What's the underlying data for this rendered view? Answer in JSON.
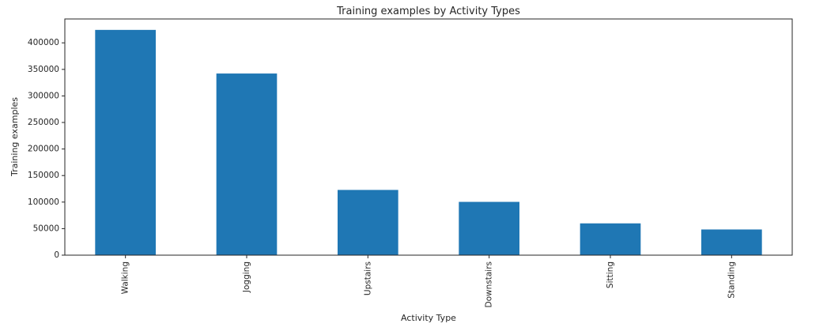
{
  "chart_data": {
    "type": "bar",
    "title": "Training examples by Activity Types",
    "xlabel": "Activity Type",
    "ylabel": "Training examples",
    "categories": [
      "Walking",
      "Jogging",
      "Upstairs",
      "Downstairs",
      "Sitting",
      "Standing"
    ],
    "values": [
      424400,
      342200,
      122900,
      100400,
      59900,
      48400
    ],
    "ylim": [
      0,
      445000
    ],
    "yticks": [
      0,
      50000,
      100000,
      150000,
      200000,
      250000,
      300000,
      350000,
      400000
    ],
    "ytick_labels": [
      "0",
      "50000",
      "100000",
      "150000",
      "200000",
      "250000",
      "300000",
      "350000",
      "400000"
    ],
    "grid": false,
    "bar_color": "#1f77b4",
    "axis_color": "#262626"
  }
}
